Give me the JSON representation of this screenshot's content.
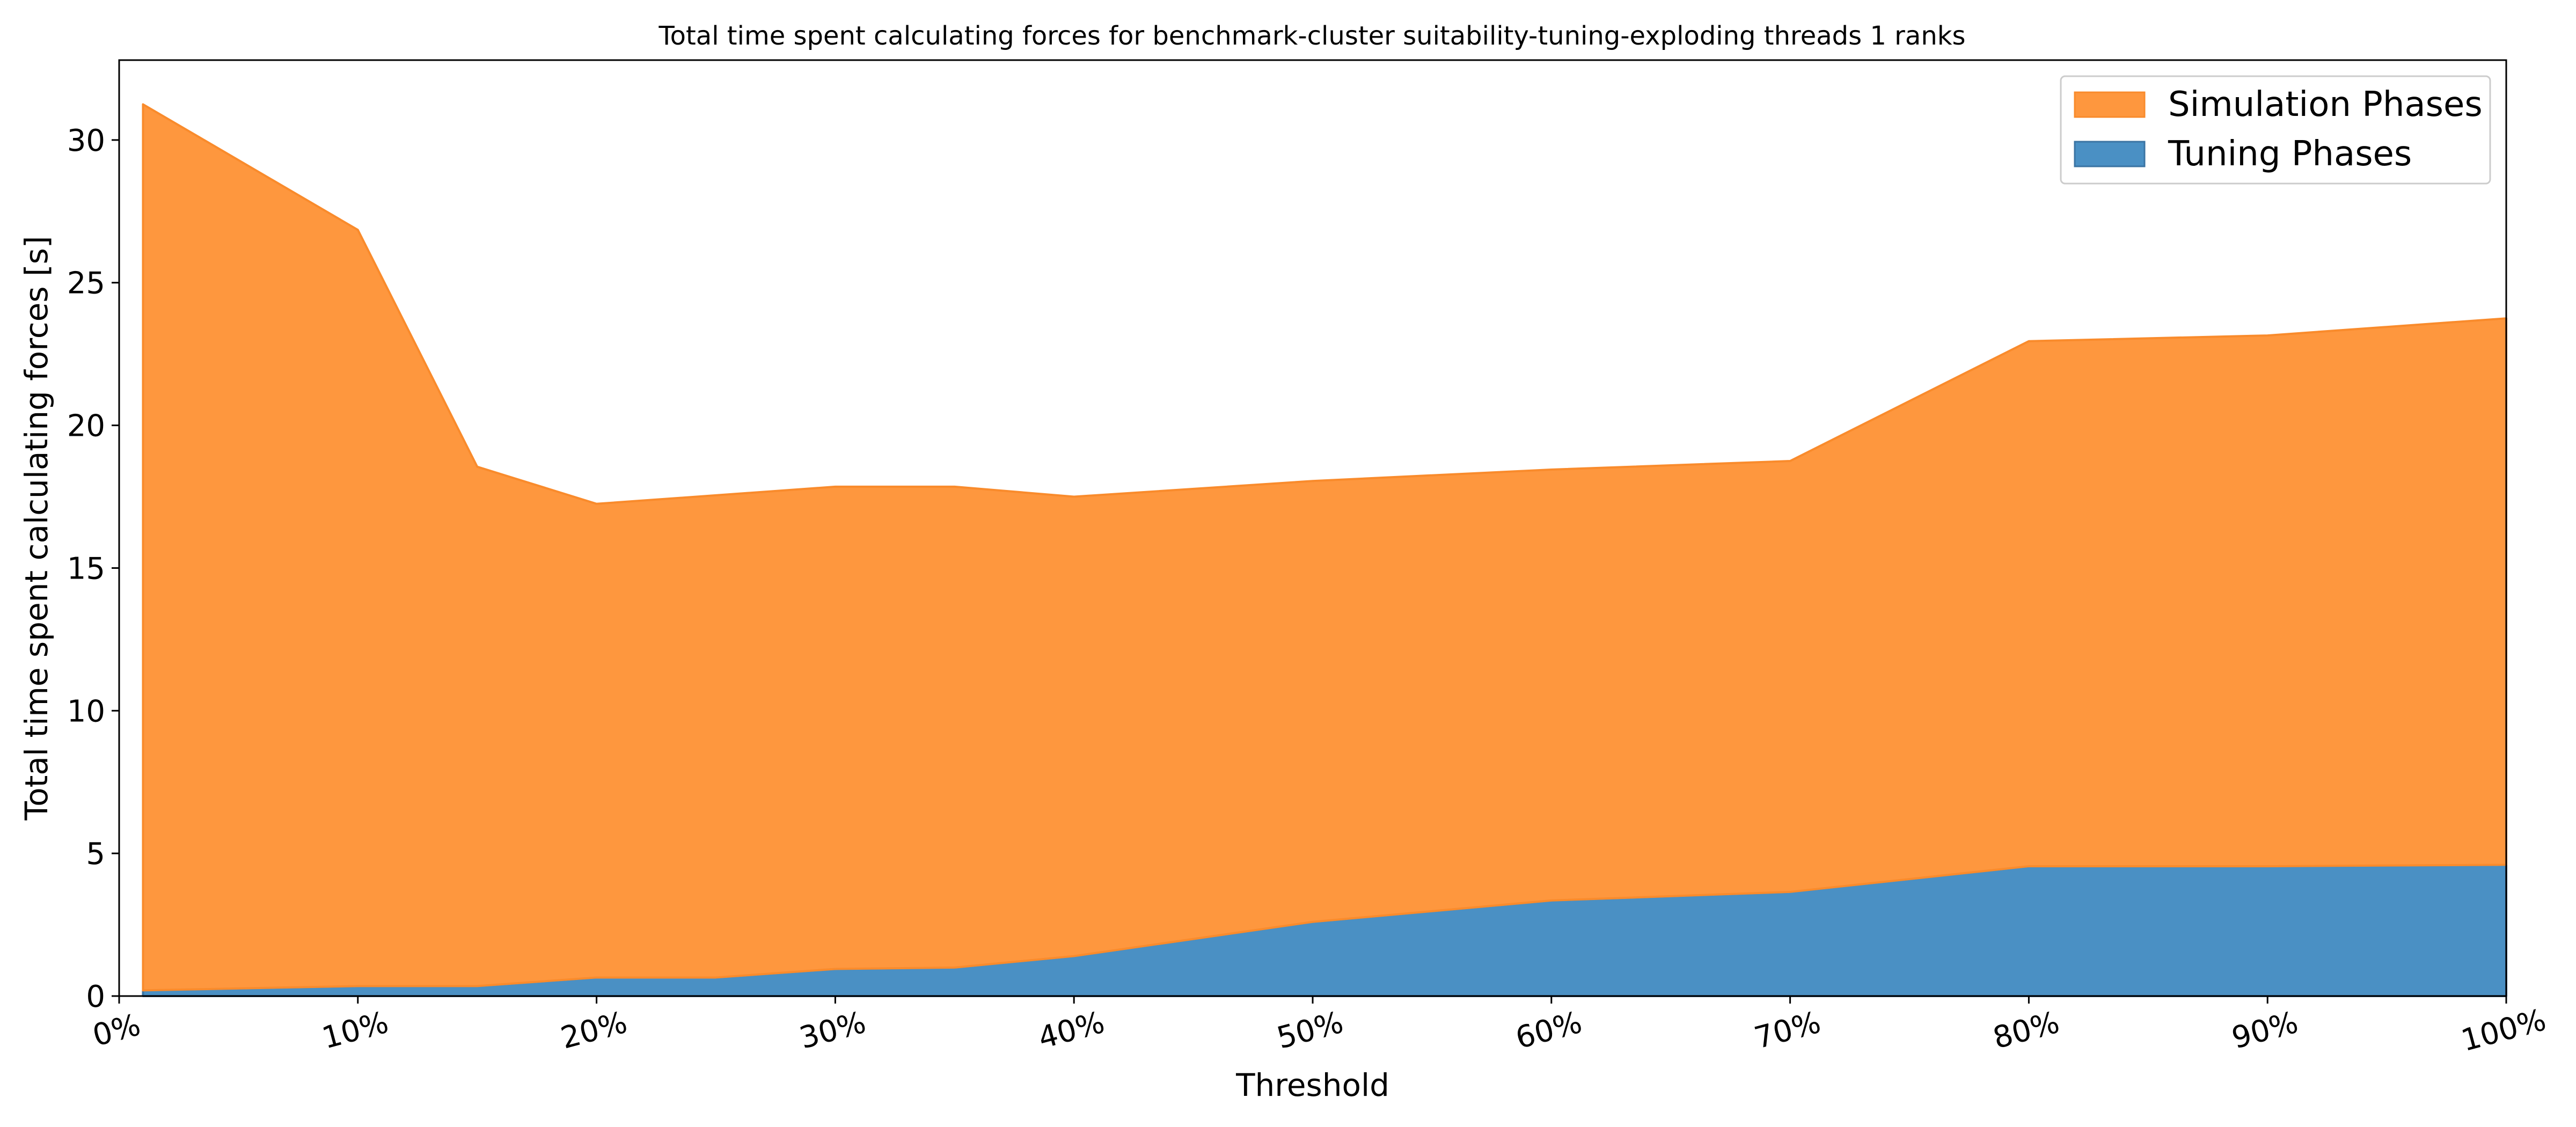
{
  "chart_data": {
    "type": "area",
    "stacked": true,
    "title": "Total time spent calculating forces for benchmark-cluster suitability-tuning-exploding threads 1 ranks",
    "xlabel": "Threshold",
    "ylabel": "Total time spent calculating forces [s]",
    "xlim": [
      0,
      100
    ],
    "ylim": [
      0,
      32.8
    ],
    "x_ticks": [
      0,
      10,
      20,
      30,
      40,
      50,
      60,
      70,
      80,
      90,
      100
    ],
    "x_tick_labels": [
      "0%",
      "10%",
      "20%",
      "30%",
      "40%",
      "50%",
      "60%",
      "70%",
      "80%",
      "90%",
      "100%"
    ],
    "y_ticks": [
      0,
      5,
      10,
      15,
      20,
      25,
      30
    ],
    "y_tick_labels": [
      "0",
      "5",
      "10",
      "15",
      "20",
      "25",
      "30"
    ],
    "grid": false,
    "legend_position": "top-right",
    "x": [
      1,
      10,
      15,
      20,
      25,
      30,
      35,
      40,
      50,
      60,
      70,
      80,
      90,
      100
    ],
    "series": [
      {
        "name": "Tuning Phases",
        "color": "#4a90c4",
        "edge_color": "#3b74a3",
        "values": [
          0.2,
          0.35,
          0.35,
          0.65,
          0.65,
          0.95,
          1.0,
          1.4,
          2.6,
          3.35,
          3.65,
          4.55,
          4.55,
          4.6
        ]
      },
      {
        "name": "Simulation Phases",
        "color": "#fe973e",
        "edge_color": "#f98b2c",
        "values": [
          31.05,
          26.5,
          18.2,
          16.6,
          16.9,
          16.9,
          16.85,
          16.1,
          15.45,
          15.1,
          15.1,
          18.4,
          18.6,
          19.15
        ]
      }
    ],
    "legend_order": [
      "Simulation Phases",
      "Tuning Phases"
    ]
  }
}
